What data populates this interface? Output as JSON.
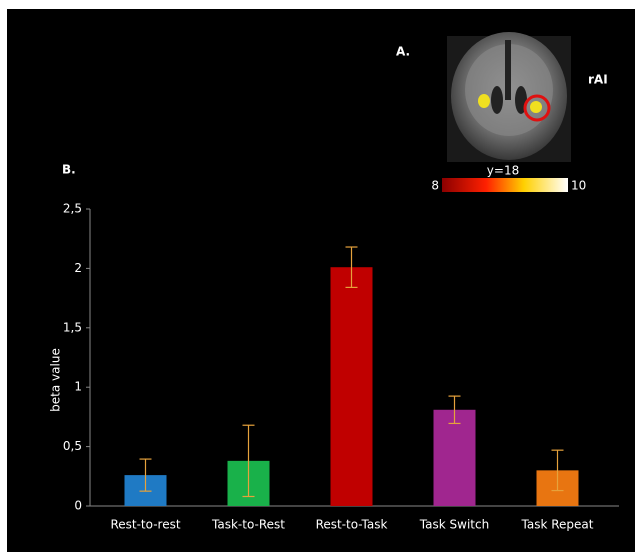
{
  "chart_data": {
    "type": "bar",
    "categories": [
      "Rest-to-rest",
      "Task-to-Rest",
      "Rest-to-Task",
      "Task Switch",
      "Task Repeat"
    ],
    "values": [
      0.26,
      0.38,
      2.01,
      0.81,
      0.3
    ],
    "errors": [
      0.135,
      0.3,
      0.17,
      0.115,
      0.17
    ],
    "colors": [
      "#1f7ac4",
      "#19b14a",
      "#c00000",
      "#a0268f",
      "#e87511"
    ],
    "error_color": "#e6a23c",
    "y_label": "beta value",
    "ylim": [
      0,
      2.5
    ],
    "yticks": [
      {
        "value": 0,
        "label": "0"
      },
      {
        "value": 0.5,
        "label": "0,5"
      },
      {
        "value": 1,
        "label": "1"
      },
      {
        "value": 1.5,
        "label": "1,5"
      },
      {
        "value": 2,
        "label": "2"
      },
      {
        "value": 2.5,
        "label": "2,5"
      }
    ],
    "panel_labels": [
      "A.",
      "B."
    ],
    "region_label": "rAI",
    "slice_label": "y=18",
    "colorbar_ticks": [
      8,
      10
    ]
  }
}
